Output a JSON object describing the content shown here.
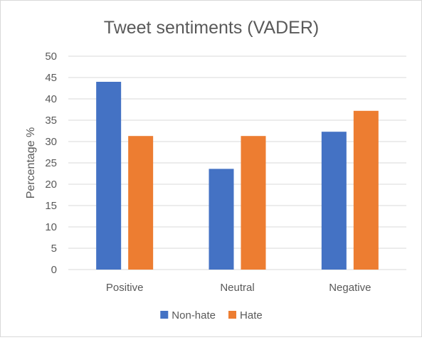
{
  "chart_data": {
    "type": "bar",
    "title": "Tweet sentiments (VADER)",
    "xlabel": "",
    "ylabel": "Percentage %",
    "categories": [
      "Positive",
      "Neutral",
      "Negative"
    ],
    "series": [
      {
        "name": "Non-hate",
        "values": [
          44.0,
          23.6,
          32.3
        ],
        "color": "#4472c4"
      },
      {
        "name": "Hate",
        "values": [
          31.3,
          31.3,
          37.2
        ],
        "color": "#ed7d31"
      }
    ],
    "ylim": [
      0,
      50
    ],
    "yticks": [
      0,
      5,
      10,
      15,
      20,
      25,
      30,
      35,
      40,
      45,
      50
    ],
    "grid": true,
    "legend_position": "bottom"
  }
}
